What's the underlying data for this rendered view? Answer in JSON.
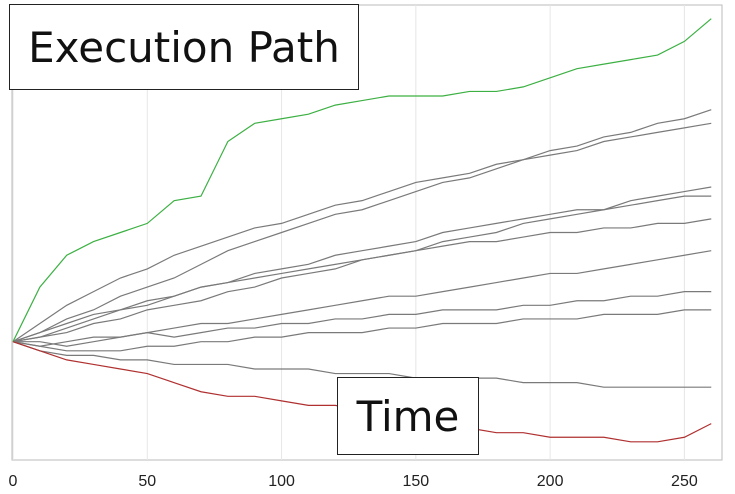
{
  "chart_data": {
    "type": "line",
    "xlabel": "Time",
    "ylabel": "Execution Path",
    "x": [
      0,
      10,
      20,
      30,
      40,
      50,
      60,
      70,
      80,
      90,
      100,
      110,
      120,
      130,
      140,
      150,
      160,
      170,
      180,
      190,
      200,
      210,
      220,
      230,
      240,
      250,
      260
    ],
    "xlim": [
      0,
      264
    ],
    "xticks": [
      0,
      50,
      100,
      150,
      200,
      250
    ],
    "ylim": [
      0,
      100
    ],
    "grid": true,
    "series": [
      {
        "color": "#7a7a7a",
        "values": [
          26,
          28,
          31,
          33,
          36,
          38,
          40,
          43,
          46,
          48,
          50,
          52,
          54,
          55,
          57,
          59,
          61,
          62,
          64,
          66,
          68,
          69,
          71,
          72,
          74,
          75,
          77
        ]
      },
      {
        "color": "#7a7a7a",
        "values": [
          26,
          27,
          28,
          30,
          31,
          33,
          34,
          35,
          37,
          38,
          40,
          41,
          42,
          44,
          45,
          46,
          48,
          49,
          50,
          52,
          53,
          54,
          55,
          57,
          58,
          59,
          60
        ]
      },
      {
        "color": "#7a7a7a",
        "values": [
          26,
          25,
          26,
          27,
          27,
          28,
          29,
          30,
          30,
          31,
          32,
          33,
          34,
          35,
          36,
          36,
          37,
          38,
          39,
          40,
          41,
          41,
          42,
          43,
          44,
          45,
          46
        ]
      },
      {
        "color": "#7a7a7a",
        "values": [
          26,
          24,
          23,
          23,
          22,
          22,
          21,
          21,
          21,
          20,
          20,
          20,
          19,
          19,
          19,
          18,
          18,
          18,
          18,
          17,
          17,
          17,
          16,
          16,
          16,
          16,
          16
        ]
      },
      {
        "color": "#7a7a7a",
        "values": [
          26,
          30,
          34,
          37,
          40,
          42,
          45,
          47,
          49,
          51,
          52,
          54,
          56,
          57,
          59,
          61,
          62,
          63,
          65,
          66,
          67,
          68,
          70,
          71,
          72,
          73,
          74
        ]
      },
      {
        "color": "#7a7a7a",
        "values": [
          26,
          27,
          29,
          31,
          33,
          34,
          36,
          38,
          39,
          41,
          42,
          43,
          45,
          46,
          47,
          48,
          50,
          51,
          52,
          53,
          54,
          55,
          55,
          56,
          57,
          58,
          58
        ]
      },
      {
        "color": "#7a7a7a",
        "values": [
          26,
          26,
          25,
          26,
          27,
          28,
          27,
          28,
          29,
          29,
          30,
          30,
          31,
          31,
          32,
          32,
          33,
          33,
          33,
          34,
          34,
          35,
          35,
          36,
          36,
          37,
          37
        ]
      },
      {
        "color": "#7a7a7a",
        "values": [
          26,
          28,
          30,
          32,
          33,
          35,
          36,
          38,
          39,
          40,
          41,
          42,
          43,
          44,
          45,
          46,
          47,
          48,
          48,
          49,
          50,
          50,
          51,
          51,
          52,
          52,
          53
        ]
      },
      {
        "color": "#7a7a7a",
        "values": [
          26,
          25,
          24,
          24,
          24,
          25,
          25,
          26,
          26,
          27,
          27,
          28,
          28,
          28,
          29,
          29,
          30,
          30,
          30,
          31,
          31,
          31,
          32,
          32,
          32,
          33,
          33
        ]
      },
      {
        "color": "#3cb043",
        "values": [
          26,
          38,
          45,
          48,
          50,
          52,
          57,
          58,
          70,
          74,
          75,
          76,
          78,
          79,
          80,
          80,
          80,
          81,
          81,
          82,
          84,
          86,
          87,
          88,
          89,
          92,
          97
        ]
      },
      {
        "color": "#b03030",
        "values": [
          26,
          24,
          22,
          21,
          20,
          19,
          17,
          15,
          14,
          14,
          13,
          12,
          12,
          11,
          10,
          9,
          8,
          7,
          6,
          6,
          5,
          5,
          5,
          4,
          4,
          5,
          8
        ]
      }
    ]
  }
}
